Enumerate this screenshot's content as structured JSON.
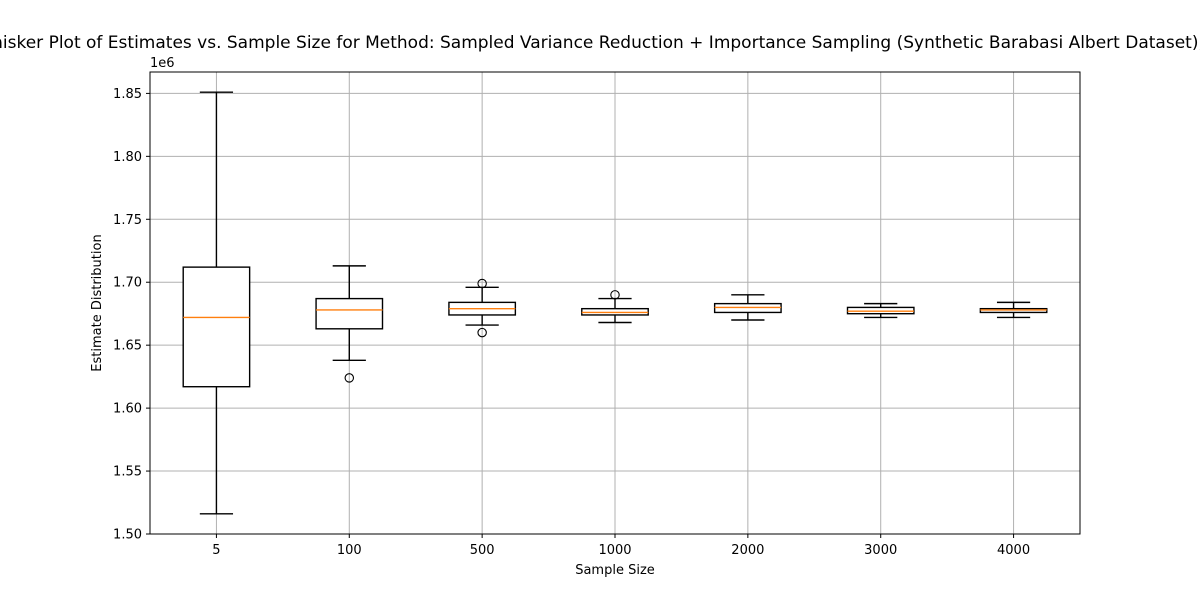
{
  "chart_data": {
    "type": "box",
    "title": "Box-and-Whisker Plot of Estimates vs. Sample Size for Method: Sampled Variance Reduction + Importance Sampling (Synthetic Barabasi Albert Dataset), Power Law",
    "xlabel": "Sample Size",
    "ylabel": "Estimate Distribution",
    "y_scale_label": "1e6",
    "categories": [
      "5",
      "100",
      "500",
      "1000",
      "2000",
      "3000",
      "4000"
    ],
    "ylim": [
      1.5,
      1.867
    ],
    "y_ticks": [
      1.5,
      1.55,
      1.6,
      1.65,
      1.7,
      1.75,
      1.8,
      1.85
    ],
    "y_tick_labels": [
      "1.50",
      "1.55",
      "1.60",
      "1.65",
      "1.70",
      "1.75",
      "1.80",
      "1.85"
    ],
    "grid": true,
    "boxes": [
      {
        "category": "5",
        "whisker_low": 1.516,
        "q1": 1.617,
        "median": 1.672,
        "q3": 1.712,
        "whisker_high": 1.851,
        "outliers": []
      },
      {
        "category": "100",
        "whisker_low": 1.638,
        "q1": 1.663,
        "median": 1.678,
        "q3": 1.687,
        "whisker_high": 1.713,
        "outliers": [
          1.624
        ]
      },
      {
        "category": "500",
        "whisker_low": 1.666,
        "q1": 1.674,
        "median": 1.679,
        "q3": 1.684,
        "whisker_high": 1.696,
        "outliers": [
          1.699,
          1.66
        ]
      },
      {
        "category": "1000",
        "whisker_low": 1.668,
        "q1": 1.674,
        "median": 1.676,
        "q3": 1.679,
        "whisker_high": 1.687,
        "outliers": [
          1.69
        ]
      },
      {
        "category": "2000",
        "whisker_low": 1.67,
        "q1": 1.676,
        "median": 1.68,
        "q3": 1.683,
        "whisker_high": 1.69,
        "outliers": []
      },
      {
        "category": "3000",
        "whisker_low": 1.672,
        "q1": 1.675,
        "median": 1.677,
        "q3": 1.68,
        "whisker_high": 1.683,
        "outliers": []
      },
      {
        "category": "4000",
        "whisker_low": 1.672,
        "q1": 1.676,
        "median": 1.678,
        "q3": 1.679,
        "whisker_high": 1.684,
        "outliers": []
      }
    ],
    "colors": {
      "box": "#000000",
      "median": "#ff7f0e",
      "grid": "#b0b0b0"
    }
  }
}
